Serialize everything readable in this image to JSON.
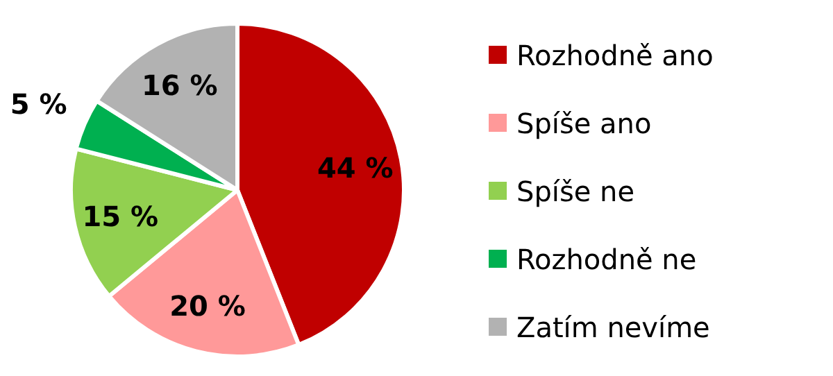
{
  "chart_data": {
    "type": "pie",
    "categories": [
      "Rozhodně ano",
      "Spíše ano",
      "Spíše ne",
      "Rozhodně ne",
      "Zatím nevíme"
    ],
    "values": [
      44,
      20,
      15,
      5,
      16
    ],
    "colors": [
      "#c00000",
      "#ff9999",
      "#92d050",
      "#00b050",
      "#b2b2b2"
    ],
    "value_labels": [
      "44 %",
      "20 %",
      "15 %",
      "5 %",
      "16 %"
    ],
    "legend": "right"
  }
}
